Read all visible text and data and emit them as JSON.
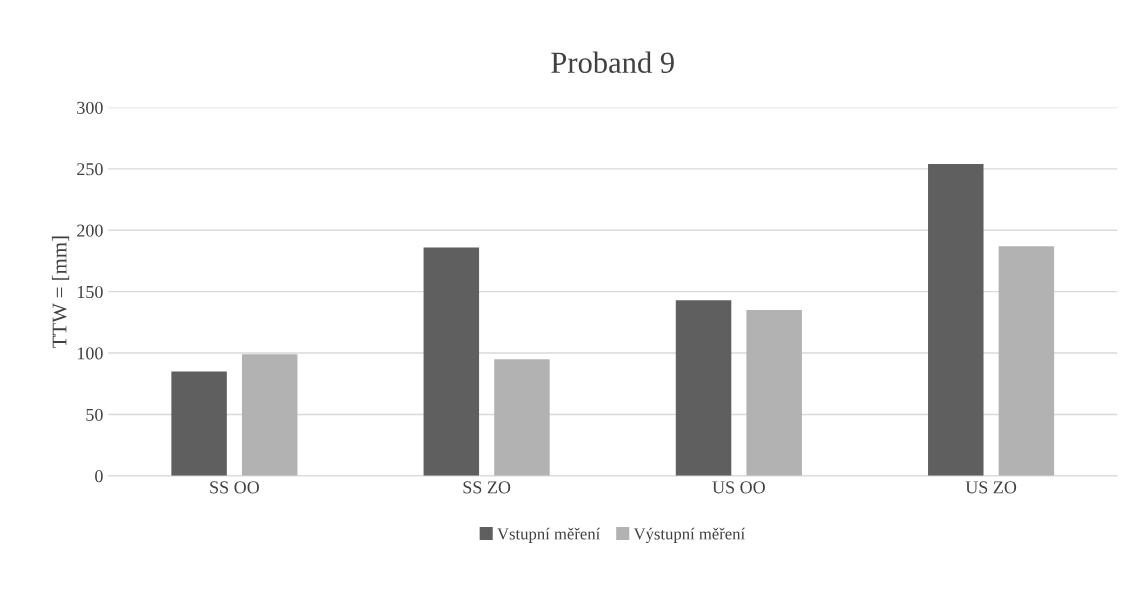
{
  "chart_data": {
    "type": "bar",
    "title": "Proband 9",
    "ylabel": "TTW = [mm]",
    "categories": [
      "SS OO",
      "SS ZO",
      "US OO",
      "US ZO"
    ],
    "series": [
      {
        "name": "Vstupní měření",
        "color": "#5f5f5f",
        "values": [
          85,
          186,
          143,
          254
        ]
      },
      {
        "name": "Výstupní měření",
        "color": "#b2b2b2",
        "values": [
          99,
          95,
          135,
          187
        ]
      }
    ],
    "ylim": [
      0,
      300
    ],
    "yticks": [
      0,
      50,
      100,
      150,
      200,
      250,
      300
    ],
    "grid": "y",
    "legend": "bottom"
  }
}
